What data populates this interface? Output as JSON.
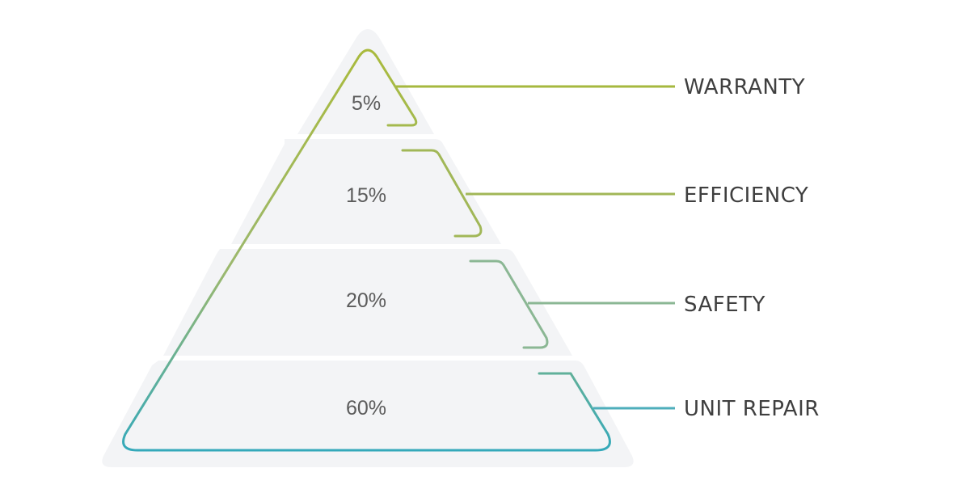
{
  "diagram": {
    "colors": {
      "background": "#ffffff",
      "tier_fill": "#f3f4f6",
      "text_pct": "#5b5b5b",
      "text_label": "#3f3f3f",
      "gradient_top": "#a9ba3c",
      "gradient_bottom": "#33a9bb"
    },
    "tiers": [
      {
        "percent": "5%",
        "label": "WARRANTY",
        "line_color": "#a6b83f"
      },
      {
        "percent": "15%",
        "label": "EFFICIENCY",
        "line_color": "#a1b757"
      },
      {
        "percent": "20%",
        "label": "SAFETY",
        "line_color": "#8bb794"
      },
      {
        "percent": "60%",
        "label": "UNIT REPAIR",
        "line_color": "#4eaebb"
      }
    ]
  }
}
